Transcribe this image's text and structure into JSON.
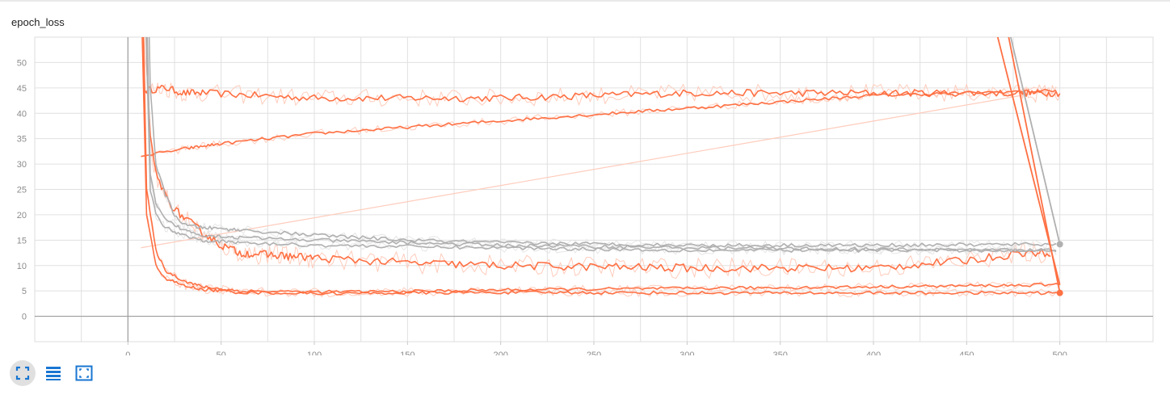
{
  "card": {
    "title": "epoch_loss"
  },
  "toolbar": {
    "buttons": [
      {
        "icon": "fullscreen-icon",
        "active": true
      },
      {
        "icon": "list-icon",
        "active": false
      },
      {
        "icon": "fit-domain-icon",
        "active": false
      }
    ],
    "color": "#1976d2"
  },
  "chart_data": {
    "type": "line",
    "title": "epoch_loss",
    "xlabel": "",
    "ylabel": "",
    "xlim": [
      -50,
      550
    ],
    "ylim": [
      -5,
      55
    ],
    "x_ticks": [
      0,
      50,
      100,
      150,
      200,
      250,
      300,
      350,
      400,
      450,
      500
    ],
    "y_ticks": [
      0,
      5,
      10,
      15,
      20,
      25,
      30,
      35,
      40,
      45,
      50
    ],
    "grid": true,
    "legend": "none",
    "colors": {
      "orange": "#ff7043",
      "gray": "#b0b0b0",
      "orange_faint": "#ffccbc"
    },
    "series": [
      {
        "color": "orange",
        "x": [
          7,
          9,
          20,
          30,
          40,
          100,
          200,
          300,
          400,
          480,
          500
        ],
        "y": [
          80,
          44.5,
          45,
          44,
          44,
          43,
          43,
          44,
          44,
          44,
          44
        ]
      },
      {
        "color": "orange",
        "x": [
          7,
          30,
          50,
          100,
          200,
          300,
          400,
          498
        ],
        "y": [
          31.5,
          33,
          34,
          36,
          38.5,
          41,
          43.5,
          44.5
        ]
      },
      {
        "color": "orange",
        "x": [
          9,
          10,
          12,
          15,
          20,
          25,
          30,
          35,
          40,
          50,
          60,
          80,
          100,
          150,
          200,
          300,
          400,
          450,
          480,
          495
        ],
        "y": [
          80,
          50,
          35,
          28,
          24,
          21,
          19.5,
          18,
          16.5,
          14,
          12.5,
          12,
          11.5,
          10.5,
          10,
          9.5,
          9.5,
          11,
          12.5,
          12.5
        ]
      },
      {
        "color": "orange",
        "x": [
          7,
          10,
          15,
          20,
          30,
          40,
          60,
          100,
          150,
          200,
          300,
          400,
          500
        ],
        "y": [
          80,
          25,
          13,
          9,
          7,
          5.8,
          5,
          4.8,
          4.9,
          5.2,
          5.5,
          5.8,
          6.2
        ]
      },
      {
        "color": "orange",
        "x": [
          6,
          10,
          15,
          20,
          30,
          40,
          60,
          100,
          150,
          200,
          300,
          400,
          500
        ],
        "y": [
          80,
          20,
          10,
          7.5,
          6,
          5.3,
          4.7,
          4.5,
          4.6,
          4.7,
          4.6,
          4.6,
          4.6
        ]
      },
      {
        "color": "gray",
        "x": [
          10,
          12,
          15,
          20,
          25,
          30,
          40,
          60,
          100,
          150,
          200,
          300,
          400,
          498
        ],
        "y": [
          80,
          45,
          30,
          24,
          20,
          18,
          17.5,
          17,
          16,
          15,
          14.5,
          14,
          14,
          14.2
        ]
      },
      {
        "color": "gray",
        "x": [
          9,
          12,
          15,
          20,
          30,
          40,
          60,
          100,
          200,
          300,
          400,
          498
        ],
        "y": [
          80,
          28,
          22,
          19,
          17,
          16,
          15.5,
          15,
          14,
          13.5,
          13.2,
          13
        ]
      },
      {
        "color": "gray",
        "x": [
          8,
          12,
          15,
          20,
          30,
          40,
          60,
          100,
          200,
          300,
          400,
          498
        ],
        "y": [
          80,
          25,
          20,
          17.5,
          16,
          15,
          14.5,
          14,
          13.5,
          13,
          13,
          13
        ]
      }
    ],
    "return_lines": [
      {
        "color": "orange",
        "x": [
          466,
          500
        ],
        "y": [
          56,
          6.2
        ]
      },
      {
        "color": "orange",
        "x": [
          472,
          500
        ],
        "y": [
          56,
          4.6
        ]
      },
      {
        "color": "gray",
        "x": [
          473,
          500
        ],
        "y": [
          56,
          14.2
        ]
      }
    ],
    "endpoints": [
      {
        "color": "gray",
        "x": 500,
        "y": 14.2
      },
      {
        "color": "orange",
        "x": 500,
        "y": 4.6
      }
    ]
  }
}
